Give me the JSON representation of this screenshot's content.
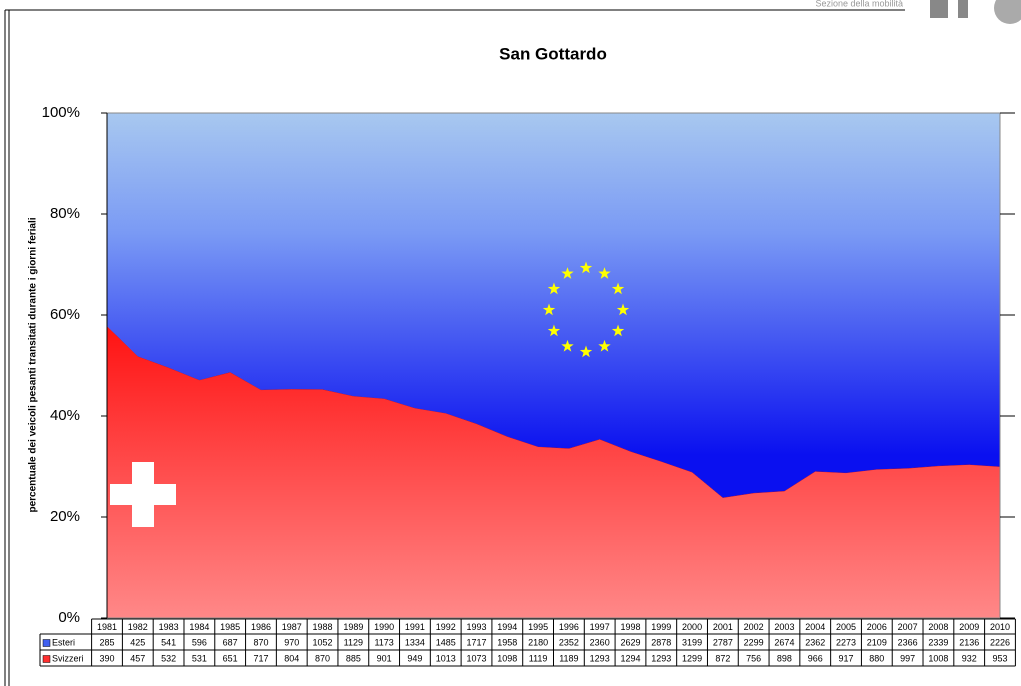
{
  "header": {
    "section": "Sezione della mobilità"
  },
  "chart_data": {
    "type": "area",
    "stacking": "percent",
    "title": "San Gottardo",
    "y_label": "percentuale dei veicoli pesanti transitati durante i giorni feriali",
    "categories": [
      "1981",
      "1982",
      "1983",
      "1984",
      "1985",
      "1986",
      "1987",
      "1988",
      "1989",
      "1990",
      "1991",
      "1992",
      "1993",
      "1994",
      "1995",
      "1996",
      "1997",
      "1998",
      "1999",
      "2000",
      "2001",
      "2002",
      "2003",
      "2004",
      "2005",
      "2006",
      "2007",
      "2008",
      "2009",
      "2010"
    ],
    "series": [
      {
        "name": "Svizzeri",
        "color": "#ff3030",
        "values": [
          390,
          457,
          532,
          531,
          651,
          717,
          804,
          870,
          885,
          901,
          949,
          1013,
          1073,
          1098,
          1119,
          1189,
          1293,
          1294,
          1293,
          1299,
          872,
          756,
          898,
          966,
          917,
          880,
          997,
          1008,
          932,
          953
        ]
      },
      {
        "name": "Esteri",
        "color": "#4060f0",
        "values": [
          285,
          425,
          541,
          596,
          687,
          870,
          970,
          1052,
          1129,
          1173,
          1334,
          1485,
          1717,
          1958,
          2180,
          2352,
          2360,
          2629,
          2878,
          3199,
          2787,
          2299,
          2674,
          2362,
          2273,
          2109,
          2366,
          2339,
          2136,
          2226
        ]
      }
    ],
    "ylim": [
      0,
      100
    ],
    "yticks": [
      {
        "value": 0,
        "label": "0%"
      },
      {
        "value": 20,
        "label": "20%"
      },
      {
        "value": 40,
        "label": "40%"
      },
      {
        "value": 60,
        "label": "60%"
      },
      {
        "value": 80,
        "label": "80%"
      },
      {
        "value": 100,
        "label": "100%"
      }
    ],
    "data_table": true
  }
}
